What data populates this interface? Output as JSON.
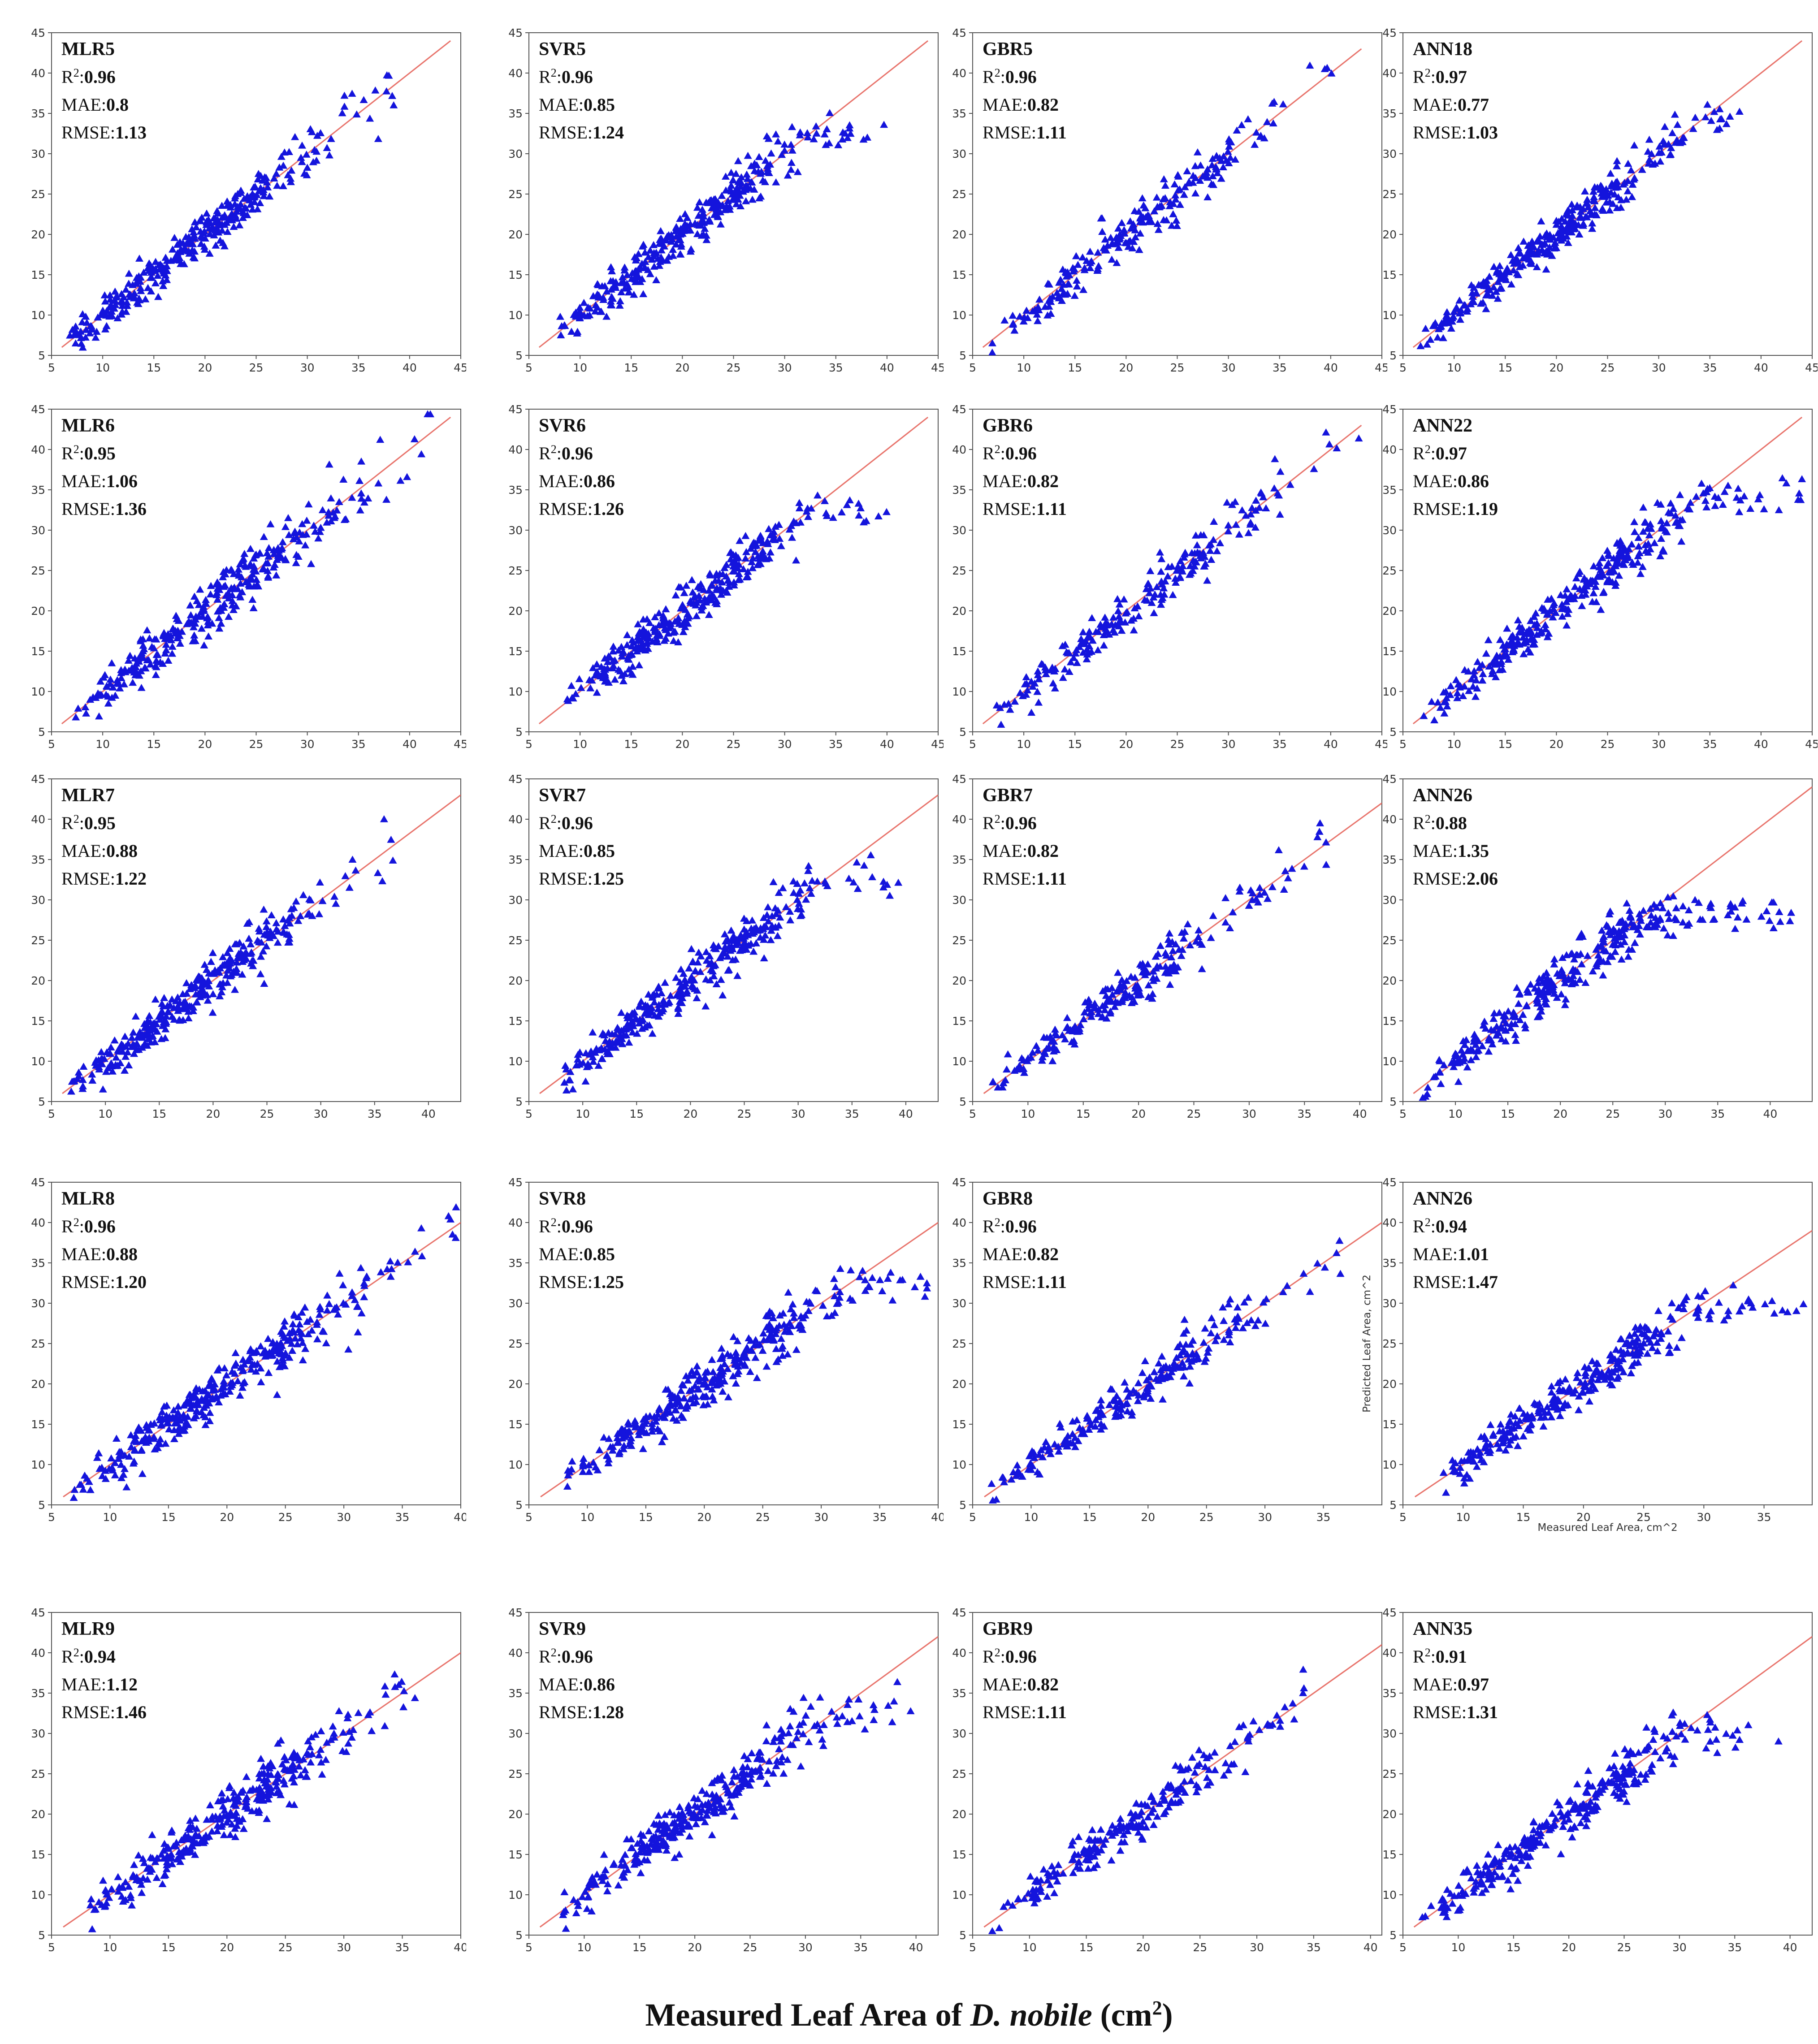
{
  "figure": {
    "caption_prefix": "Measured Leaf Area of ",
    "caption_italic": "D. nobile",
    "caption_suffix_pre": " (cm",
    "caption_sup": "2",
    "caption_suffix_post": ")"
  },
  "colors": {
    "marker": "#1414dc",
    "line": "#e8736b",
    "frame": "#555555",
    "text": "#111111"
  },
  "chart_data": [
    {
      "type": "scatter",
      "title": "MLR5",
      "r2": "0.96",
      "mae": "0.8",
      "rmse": "1.13",
      "xlim": [
        5,
        45
      ],
      "ylim": [
        5,
        45
      ],
      "xticks": [
        "5",
        "10",
        "15",
        "20",
        "25",
        "30",
        "35",
        "40",
        "45"
      ],
      "yticks": [
        "5",
        "10",
        "15",
        "20",
        "25",
        "30",
        "35",
        "40",
        "45"
      ],
      "fit_line": [
        [
          6,
          6
        ],
        [
          44,
          44
        ]
      ],
      "x_range": [
        6.5,
        39
      ],
      "spread": 1.1,
      "count": 320,
      "marker": "triangle",
      "xlabel": "",
      "ylabel": ""
    },
    {
      "type": "scatter",
      "title": "SVR5",
      "r2": "0.96",
      "mae": "0.85",
      "rmse": "1.24",
      "xlim": [
        5,
        45
      ],
      "ylim": [
        5,
        45
      ],
      "xticks": [
        "5",
        "10",
        "15",
        "20",
        "25",
        "30",
        "35",
        "40",
        "45"
      ],
      "yticks": [
        "5",
        "10",
        "15",
        "20",
        "25",
        "30",
        "35",
        "40",
        "45"
      ],
      "fit_line": [
        [
          6,
          6
        ],
        [
          44,
          44
        ]
      ],
      "x_range": [
        8,
        40
      ],
      "spread": 1.2,
      "count": 320,
      "cap": 32,
      "marker": "triangle",
      "xlabel": "",
      "ylabel": ""
    },
    {
      "type": "scatter",
      "title": "GBR5",
      "r2": "0.96",
      "mae": "0.82",
      "rmse": "1.11",
      "xlim": [
        5,
        45
      ],
      "ylim": [
        5,
        45
      ],
      "xticks": [
        "5",
        "10",
        "15",
        "20",
        "25",
        "30",
        "35",
        "40",
        "45"
      ],
      "yticks": [
        "5",
        "10",
        "15",
        "20",
        "25",
        "30",
        "35",
        "40",
        "45"
      ],
      "fit_line": [
        [
          6,
          6
        ],
        [
          43,
          43
        ]
      ],
      "x_range": [
        6.5,
        43
      ],
      "spread": 1.1,
      "count": 220,
      "marker": "triangle",
      "xlabel": "",
      "ylabel": ""
    },
    {
      "type": "scatter",
      "title": "ANN18",
      "r2": "0.97",
      "mae": "0.77",
      "rmse": "1.03",
      "xlim": [
        5,
        45
      ],
      "ylim": [
        5,
        45
      ],
      "xticks": [
        "5",
        "10",
        "15",
        "20",
        "25",
        "30",
        "35",
        "40",
        "45"
      ],
      "yticks": [
        "5",
        "10",
        "15",
        "20",
        "25",
        "30",
        "35",
        "40",
        "45"
      ],
      "fit_line": [
        [
          6,
          6
        ],
        [
          44,
          44
        ]
      ],
      "x_range": [
        6.5,
        39
      ],
      "spread": 1.0,
      "count": 320,
      "cap": 34,
      "marker": "triangle",
      "xlabel": "",
      "ylabel": ""
    },
    {
      "type": "scatter",
      "title": "MLR6",
      "r2": "0.95",
      "mae": "1.06",
      "rmse": "1.36",
      "xlim": [
        5,
        45
      ],
      "ylim": [
        5,
        45
      ],
      "xticks": [
        "5",
        "10",
        "15",
        "20",
        "25",
        "30",
        "35",
        "40",
        "45"
      ],
      "yticks": [
        "5",
        "10",
        "15",
        "20",
        "25",
        "30",
        "35",
        "40",
        "45"
      ],
      "fit_line": [
        [
          6,
          6
        ],
        [
          44,
          44
        ]
      ],
      "x_range": [
        7,
        43
      ],
      "spread": 1.3,
      "count": 320,
      "marker": "triangle",
      "xlabel": "",
      "ylabel": ""
    },
    {
      "type": "scatter",
      "title": "SVR6",
      "r2": "0.96",
      "mae": "0.86",
      "rmse": "1.26",
      "xlim": [
        5,
        45
      ],
      "ylim": [
        5,
        45
      ],
      "xticks": [
        "5",
        "10",
        "15",
        "20",
        "25",
        "30",
        "35",
        "40",
        "45"
      ],
      "yticks": [
        "5",
        "10",
        "15",
        "20",
        "25",
        "30",
        "35",
        "40",
        "45"
      ],
      "fit_line": [
        [
          6,
          6
        ],
        [
          44,
          44
        ]
      ],
      "x_range": [
        8,
        40
      ],
      "spread": 1.2,
      "count": 320,
      "cap": 32,
      "marker": "triangle",
      "xlabel": "",
      "ylabel": ""
    },
    {
      "type": "scatter",
      "title": "GBR6",
      "r2": "0.96",
      "mae": "0.82",
      "rmse": "1.11",
      "xlim": [
        5,
        45
      ],
      "ylim": [
        5,
        45
      ],
      "xticks": [
        "5",
        "10",
        "15",
        "20",
        "25",
        "30",
        "35",
        "40",
        "45"
      ],
      "yticks": [
        "5",
        "10",
        "15",
        "20",
        "25",
        "30",
        "35",
        "40",
        "45"
      ],
      "fit_line": [
        [
          6,
          6
        ],
        [
          43,
          43
        ]
      ],
      "x_range": [
        6.5,
        43
      ],
      "spread": 1.1,
      "count": 220,
      "marker": "triangle",
      "xlabel": "",
      "ylabel": ""
    },
    {
      "type": "scatter",
      "title": "ANN22",
      "r2": "0.97",
      "mae": "0.86",
      "rmse": "1.19",
      "xlim": [
        5,
        45
      ],
      "ylim": [
        5,
        45
      ],
      "xticks": [
        "5",
        "10",
        "15",
        "20",
        "25",
        "30",
        "35",
        "40",
        "45"
      ],
      "yticks": [
        "5",
        "10",
        "15",
        "20",
        "25",
        "30",
        "35",
        "40",
        "45"
      ],
      "fit_line": [
        [
          6,
          6
        ],
        [
          44,
          44
        ]
      ],
      "x_range": [
        7,
        44
      ],
      "spread": 1.1,
      "count": 320,
      "cap": 34,
      "marker": "triangle",
      "xlabel": "",
      "ylabel": ""
    },
    {
      "type": "scatter",
      "title": "MLR7",
      "r2": "0.95",
      "mae": "0.88",
      "rmse": "1.22",
      "xlim": [
        5,
        43
      ],
      "ylim": [
        5,
        45
      ],
      "xticks": [
        "5",
        "10",
        "15",
        "20",
        "25",
        "30",
        "35",
        "40"
      ],
      "yticks": [
        "5",
        "10",
        "15",
        "20",
        "25",
        "30",
        "35",
        "40",
        "45"
      ],
      "fit_line": [
        [
          6,
          6
        ],
        [
          43,
          43
        ]
      ],
      "x_range": [
        6.5,
        37
      ],
      "spread": 1.2,
      "count": 320,
      "marker": "triangle",
      "xlabel": "",
      "ylabel": ""
    },
    {
      "type": "scatter",
      "title": "SVR7",
      "r2": "0.96",
      "mae": "0.85",
      "rmse": "1.25",
      "xlim": [
        5,
        43
      ],
      "ylim": [
        5,
        45
      ],
      "xticks": [
        "5",
        "10",
        "15",
        "20",
        "25",
        "30",
        "35",
        "40"
      ],
      "yticks": [
        "5",
        "10",
        "15",
        "20",
        "25",
        "30",
        "35",
        "40",
        "45"
      ],
      "fit_line": [
        [
          6,
          6
        ],
        [
          43,
          43
        ]
      ],
      "x_range": [
        8,
        40
      ],
      "spread": 1.2,
      "count": 320,
      "cap": 32,
      "marker": "triangle",
      "xlabel": "",
      "ylabel": ""
    },
    {
      "type": "scatter",
      "title": "GBR7",
      "r2": "0.96",
      "mae": "0.82",
      "rmse": "1.11",
      "xlim": [
        5,
        42
      ],
      "ylim": [
        5,
        45
      ],
      "xticks": [
        "5",
        "10",
        "15",
        "20",
        "25",
        "30",
        "35",
        "40"
      ],
      "yticks": [
        "5",
        "10",
        "15",
        "20",
        "25",
        "30",
        "35",
        "40",
        "45"
      ],
      "fit_line": [
        [
          6,
          6
        ],
        [
          42,
          42
        ]
      ],
      "x_range": [
        6.5,
        37
      ],
      "spread": 1.1,
      "count": 220,
      "marker": "triangle",
      "xlabel": "",
      "ylabel": ""
    },
    {
      "type": "scatter",
      "title": "ANN26",
      "r2": "0.88",
      "mae": "1.35",
      "rmse": "2.06",
      "xlim": [
        5,
        44
      ],
      "ylim": [
        5,
        45
      ],
      "xticks": [
        "5",
        "10",
        "15",
        "20",
        "25",
        "30",
        "35",
        "40"
      ],
      "yticks": [
        "5",
        "10",
        "15",
        "20",
        "25",
        "30",
        "35",
        "40",
        "45"
      ],
      "fit_line": [
        [
          6,
          6
        ],
        [
          44,
          44
        ]
      ],
      "x_range": [
        6.5,
        44
      ],
      "spread": 1.2,
      "count": 320,
      "cap": 28,
      "marker": "triangle",
      "xlabel": "",
      "ylabel": ""
    },
    {
      "type": "scatter",
      "title": "MLR8",
      "r2": "0.96",
      "mae": "0.88",
      "rmse": "1.20",
      "xlim": [
        5,
        40
      ],
      "ylim": [
        5,
        45
      ],
      "xticks": [
        "5",
        "10",
        "15",
        "20",
        "25",
        "30",
        "35",
        "40"
      ],
      "yticks": [
        "5",
        "10",
        "15",
        "20",
        "25",
        "30",
        "35",
        "40",
        "45"
      ],
      "fit_line": [
        [
          6,
          6
        ],
        [
          40,
          40
        ]
      ],
      "x_range": [
        6.5,
        40
      ],
      "spread": 1.2,
      "count": 340,
      "marker": "triangle",
      "xlabel": "",
      "ylabel": ""
    },
    {
      "type": "scatter",
      "title": "SVR8",
      "r2": "0.96",
      "mae": "0.85",
      "rmse": "1.25",
      "xlim": [
        5,
        40
      ],
      "ylim": [
        5,
        45
      ],
      "xticks": [
        "5",
        "10",
        "15",
        "20",
        "25",
        "30",
        "35",
        "40"
      ],
      "yticks": [
        "5",
        "10",
        "15",
        "20",
        "25",
        "30",
        "35",
        "40",
        "45"
      ],
      "fit_line": [
        [
          6,
          6
        ],
        [
          40,
          40
        ]
      ],
      "x_range": [
        8,
        40
      ],
      "spread": 1.2,
      "count": 320,
      "cap": 32,
      "marker": "triangle",
      "xlabel": "",
      "ylabel": ""
    },
    {
      "type": "scatter",
      "title": "GBR8",
      "r2": "0.96",
      "mae": "0.82",
      "rmse": "1.11",
      "xlim": [
        5,
        40
      ],
      "ylim": [
        5,
        45
      ],
      "xticks": [
        "5",
        "10",
        "15",
        "20",
        "25",
        "30",
        "35"
      ],
      "yticks": [
        "5",
        "10",
        "15",
        "20",
        "25",
        "30",
        "35",
        "40",
        "45"
      ],
      "fit_line": [
        [
          6,
          6
        ],
        [
          40,
          40
        ]
      ],
      "x_range": [
        6.5,
        37
      ],
      "spread": 1.1,
      "count": 220,
      "marker": "triangle",
      "xlabel": "",
      "ylabel": ""
    },
    {
      "type": "scatter",
      "title": "ANN26",
      "r2": "0.94",
      "mae": "1.01",
      "rmse": "1.47",
      "xlim": [
        5,
        39
      ],
      "ylim": [
        5,
        45
      ],
      "xticks": [
        "5",
        "10",
        "15",
        "20",
        "25",
        "30",
        "35"
      ],
      "yticks": [
        "5",
        "10",
        "15",
        "20",
        "25",
        "30",
        "35",
        "40",
        "45"
      ],
      "fit_line": [
        [
          6,
          6
        ],
        [
          39,
          39
        ]
      ],
      "x_range": [
        8,
        39
      ],
      "spread": 1.1,
      "count": 300,
      "cap": 29,
      "marker": "triangle",
      "xlabel": "Measured Leaf Area, cm^2",
      "ylabel": "Predicted Leaf Area, cm^2"
    },
    {
      "type": "scatter",
      "title": "MLR9",
      "r2": "0.94",
      "mae": "1.12",
      "rmse": "1.46",
      "xlim": [
        5,
        40
      ],
      "ylim": [
        5,
        45
      ],
      "xticks": [
        "5",
        "10",
        "15",
        "20",
        "25",
        "30",
        "35",
        "40"
      ],
      "yticks": [
        "5",
        "10",
        "15",
        "20",
        "25",
        "30",
        "35",
        "40",
        "45"
      ],
      "fit_line": [
        [
          6,
          6
        ],
        [
          40,
          40
        ]
      ],
      "x_range": [
        8,
        37
      ],
      "spread": 1.3,
      "count": 320,
      "marker": "triangle",
      "xlabel": "",
      "ylabel": ""
    },
    {
      "type": "scatter",
      "title": "SVR9",
      "r2": "0.96",
      "mae": "0.86",
      "rmse": "1.28",
      "xlim": [
        5,
        42
      ],
      "ylim": [
        5,
        45
      ],
      "xticks": [
        "5",
        "10",
        "15",
        "20",
        "25",
        "30",
        "35",
        "40"
      ],
      "yticks": [
        "5",
        "10",
        "15",
        "20",
        "25",
        "30",
        "35",
        "40",
        "45"
      ],
      "fit_line": [
        [
          6,
          6
        ],
        [
          42,
          42
        ]
      ],
      "x_range": [
        8,
        40
      ],
      "spread": 1.2,
      "count": 320,
      "cap": 32,
      "marker": "triangle",
      "xlabel": "",
      "ylabel": ""
    },
    {
      "type": "scatter",
      "title": "GBR9",
      "r2": "0.96",
      "mae": "0.82",
      "rmse": "1.11",
      "xlim": [
        5,
        41
      ],
      "ylim": [
        5,
        45
      ],
      "xticks": [
        "5",
        "10",
        "15",
        "20",
        "25",
        "30",
        "35",
        "40"
      ],
      "yticks": [
        "5",
        "10",
        "15",
        "20",
        "25",
        "30",
        "35",
        "40",
        "45"
      ],
      "fit_line": [
        [
          6,
          6
        ],
        [
          41,
          41
        ]
      ],
      "x_range": [
        6.5,
        37
      ],
      "spread": 1.1,
      "count": 220,
      "marker": "triangle",
      "xlabel": "",
      "ylabel": ""
    },
    {
      "type": "scatter",
      "title": "ANN35",
      "r2": "0.91",
      "mae": "0.97",
      "rmse": "1.31",
      "xlim": [
        5,
        42
      ],
      "ylim": [
        5,
        45
      ],
      "xticks": [
        "5",
        "10",
        "15",
        "20",
        "25",
        "30",
        "35",
        "40"
      ],
      "yticks": [
        "5",
        "10",
        "15",
        "20",
        "25",
        "30",
        "35",
        "40",
        "45"
      ],
      "fit_line": [
        [
          6,
          6
        ],
        [
          42,
          42
        ]
      ],
      "x_range": [
        6.5,
        39
      ],
      "spread": 1.1,
      "count": 300,
      "cap": 30,
      "marker": "triangle",
      "xlabel": "",
      "ylabel": ""
    }
  ]
}
